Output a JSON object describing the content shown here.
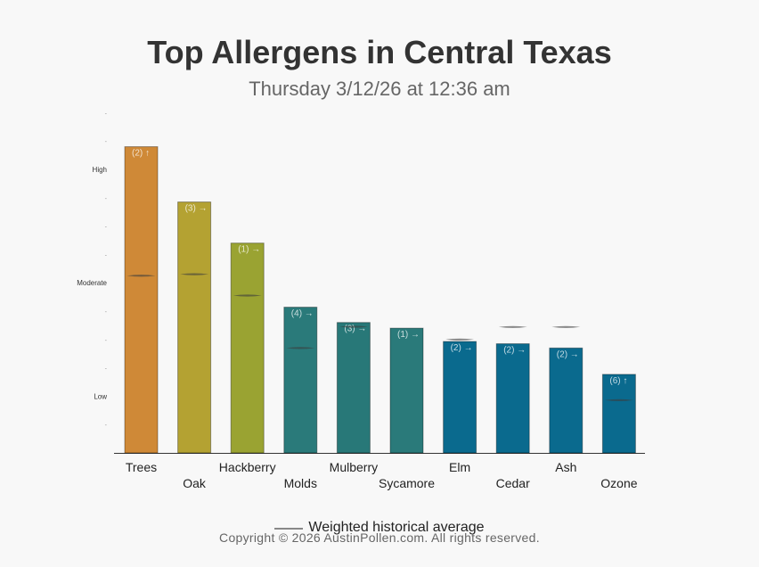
{
  "chart_data": {
    "type": "bar",
    "title": "Top Allergens in Central Texas",
    "subtitle": "Thursday 3/12/26 at 12:36 am",
    "categories": [
      "Trees",
      "Oak",
      "Hackberry",
      "Molds",
      "Mulberry",
      "Sycamore",
      "Elm",
      "Cedar",
      "Ash",
      "Ozone"
    ],
    "values": [
      10.8,
      8.85,
      7.4,
      5.14,
      4.6,
      4.4,
      3.93,
      3.85,
      3.7,
      2.77
    ],
    "bar_labels": [
      "(2) ↑",
      "(3) →",
      "(1) →",
      "(4) →",
      "(3) →",
      "(1) →",
      "(2) →",
      "(2) →",
      "(2) →",
      "(6) ↑"
    ],
    "historical_average": [
      6.25,
      6.3,
      5.55,
      3.7,
      4.45,
      null,
      4.0,
      4.44,
      4.44,
      1.86
    ],
    "y_ticks": [
      {
        "value": 1,
        "label": "-"
      },
      {
        "value": 2,
        "label": "Low"
      },
      {
        "value": 3,
        "label": "-"
      },
      {
        "value": 4,
        "label": "-"
      },
      {
        "value": 5,
        "label": "-"
      },
      {
        "value": 6,
        "label": "Moderate"
      },
      {
        "value": 7,
        "label": "-"
      },
      {
        "value": 8,
        "label": "-"
      },
      {
        "value": 9,
        "label": "-"
      },
      {
        "value": 10,
        "label": "High"
      },
      {
        "value": 11,
        "label": "-"
      },
      {
        "value": 12,
        "label": "-"
      }
    ],
    "ylim": [
      0,
      12
    ],
    "colors": [
      "#cf8937",
      "#b4a232",
      "#9aa332",
      "#2a7a7a",
      "#287878",
      "#2a7a7a",
      "#0a6a8e",
      "#0a6a8e",
      "#0a6a8e",
      "#0a6a8e"
    ],
    "legend": {
      "label": "Weighted historical average",
      "position": "bottom"
    }
  },
  "footer": {
    "copyright": "Copyright © 2026 AustinPollen.com.  All rights reserved."
  }
}
